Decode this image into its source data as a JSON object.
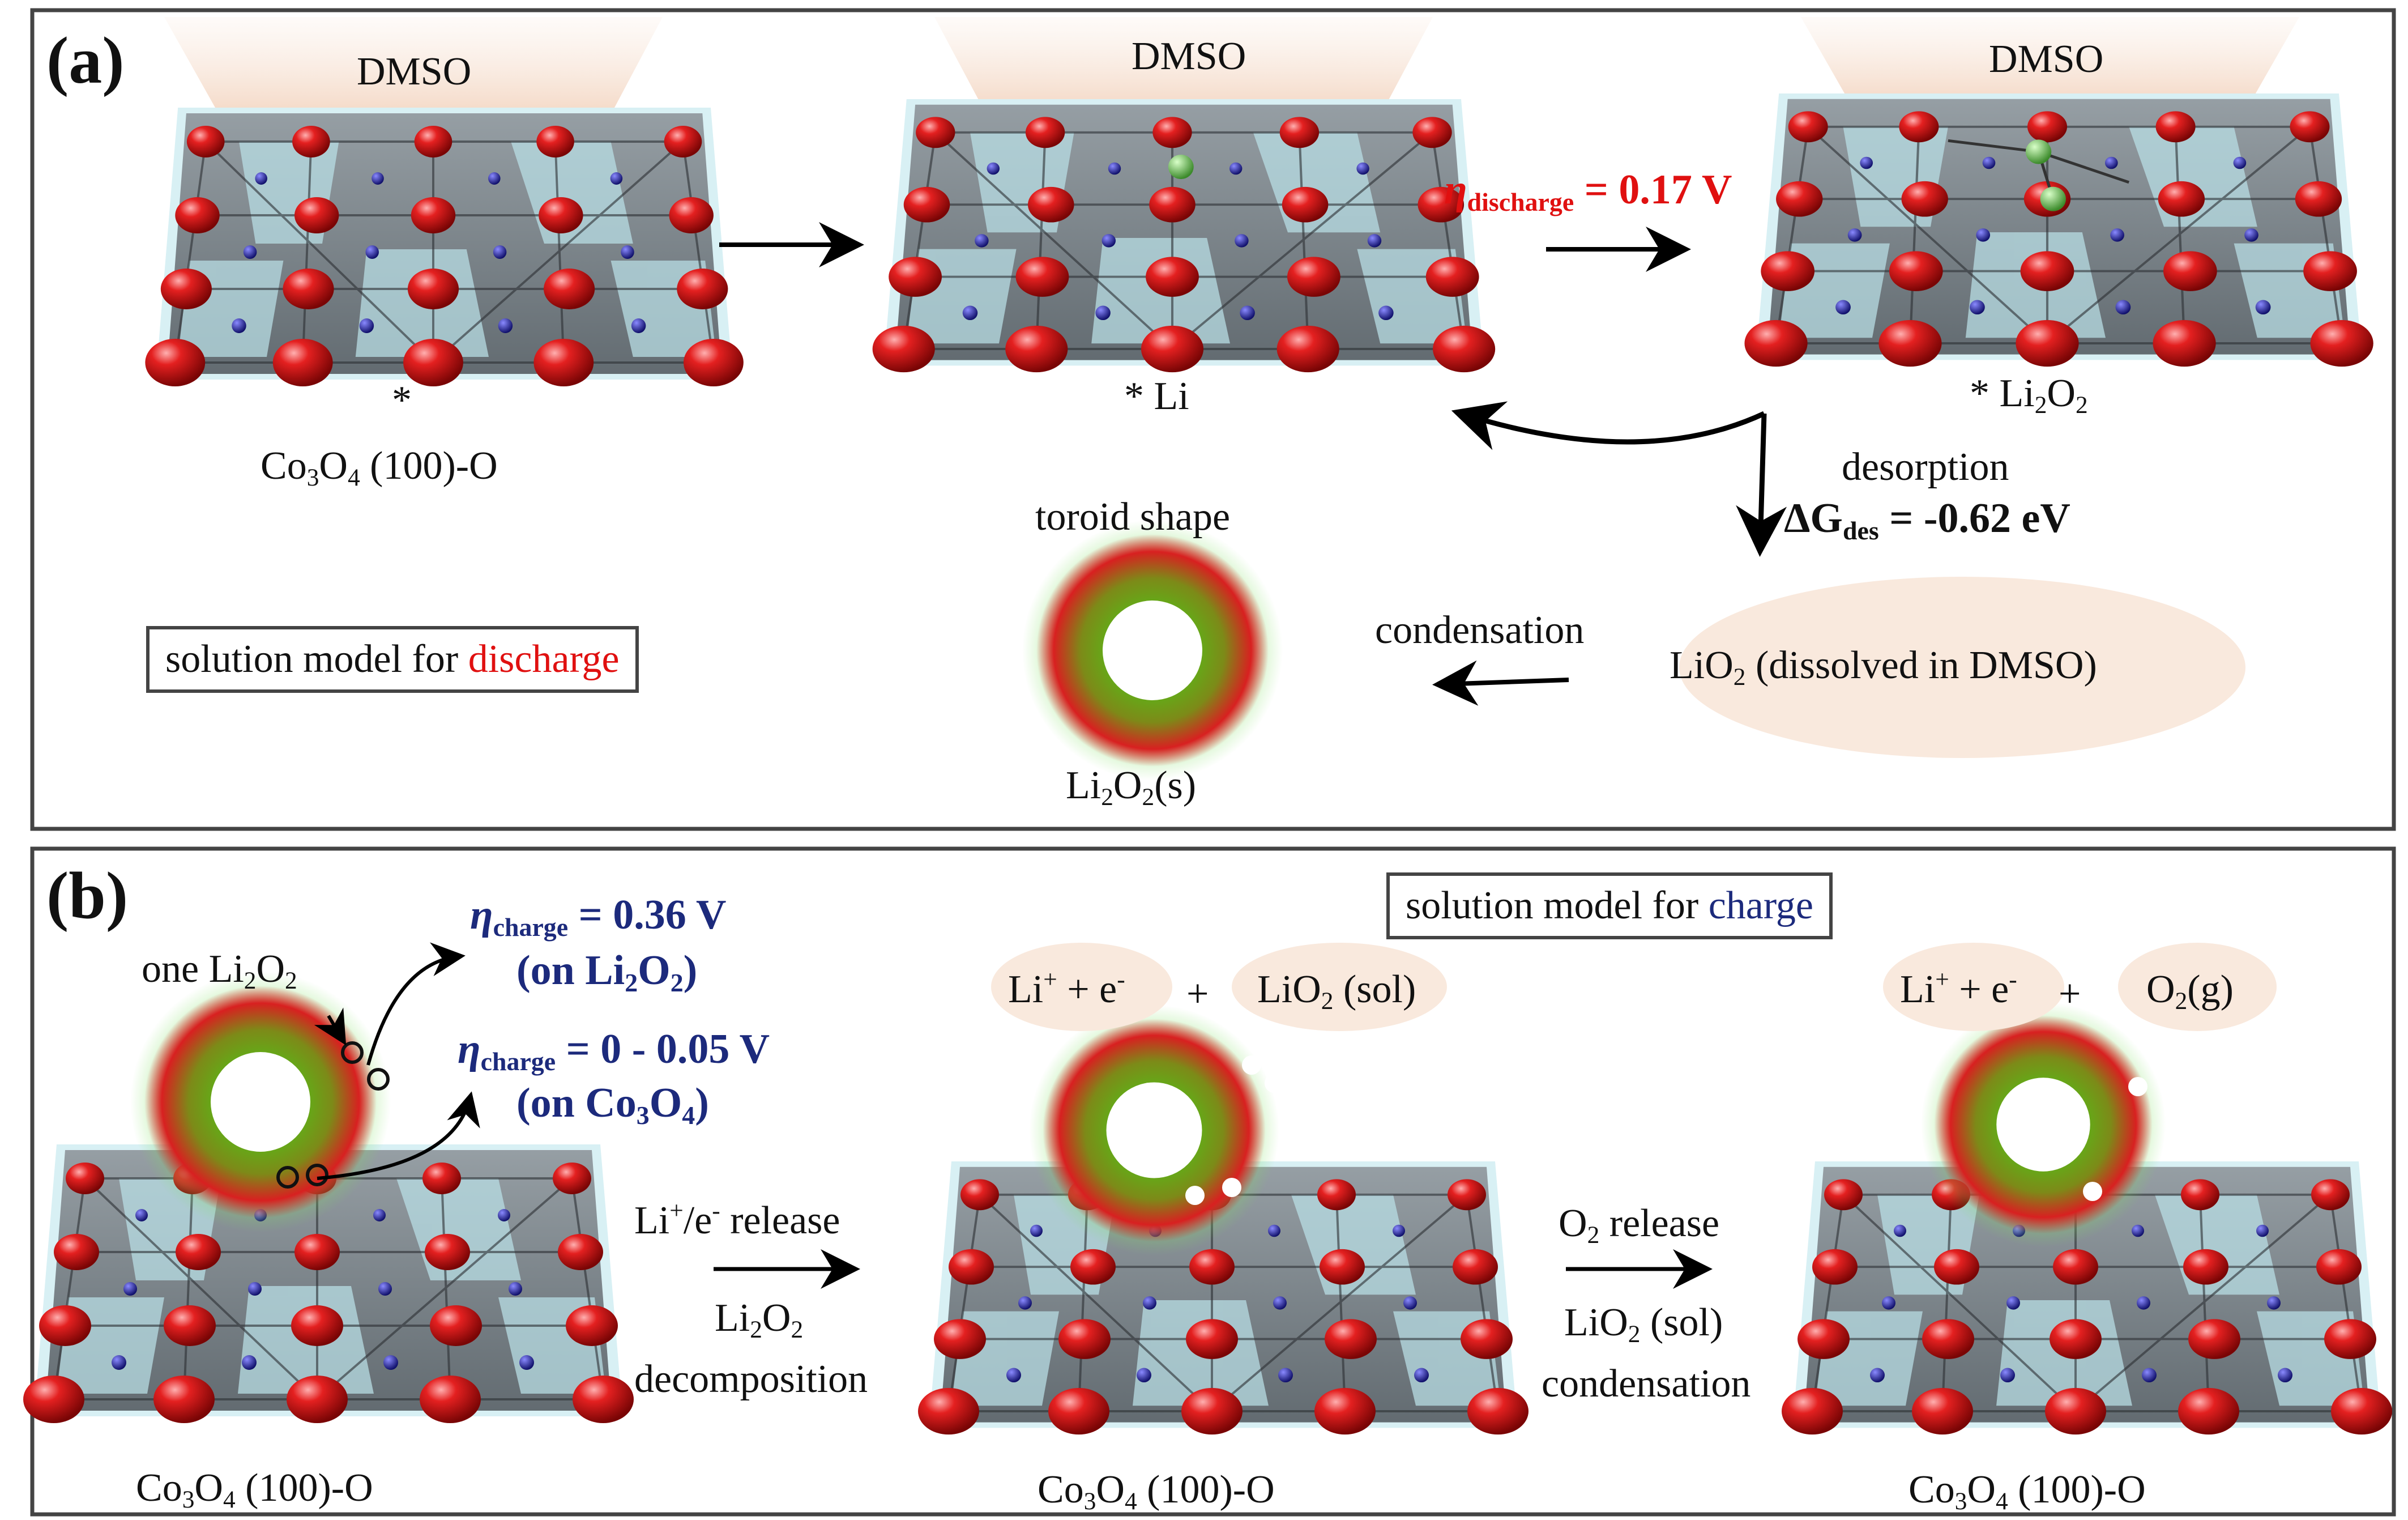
{
  "colors": {
    "oxygen": "#d11a1a",
    "cobalt": "#1a1a9a",
    "lithium": "#6bbf59",
    "polyhedra": "#5b6269",
    "solvent_cap": "#f7e4d6",
    "toroid_outer": "#d42222",
    "toroid_inner": "#5aa818",
    "highlight_red": "#e01010",
    "highlight_navy": "#1c2a7c"
  },
  "panel_a": {
    "label": "(a)",
    "solvent_1": "DMSO",
    "solvent_2": "DMSO",
    "solvent_3": "DMSO",
    "site_1": "*",
    "surface_1": {
      "pre": "Co",
      "s1": "3",
      "mid": "O",
      "s2": "4",
      "post": " (100)-O"
    },
    "site_2": "* Li",
    "site_3": {
      "pre": "* Li",
      "s1": "2",
      "mid": "O",
      "s2": "2"
    },
    "eta_discharge": {
      "symbol": "η",
      "sub": "discharge",
      "value": " = 0.17 V"
    },
    "desorption": "desorption",
    "dG_des": {
      "symbol": "ΔG",
      "sub": "des",
      "value": " = -0.62 eV"
    },
    "toroid_title": "toroid shape",
    "condensation": "condensation",
    "liO2_sol": {
      "pre": "LiO",
      "sub": "2",
      "post": " (dissolved in DMSO)"
    },
    "product": {
      "pre": "Li",
      "s1": "2",
      "mid": "O",
      "s2": "2",
      "post": "(s)"
    },
    "model_box": {
      "pre": "solution model for ",
      "highlight": "discharge"
    }
  },
  "panel_b": {
    "label": "(b)",
    "model_box": {
      "pre": "solution model for ",
      "highlight": "charge"
    },
    "one_li2o2": {
      "pre": "one Li",
      "s1": "2",
      "mid": "O",
      "s2": "2"
    },
    "eta_charge_1": {
      "symbol": "η",
      "sub": "charge",
      "value": " = 0.36 V"
    },
    "on_li2o2": {
      "pre": "(on Li",
      "s1": "2",
      "mid": "O",
      "s2": "2",
      "post": ")"
    },
    "eta_charge_2": {
      "symbol": "η",
      "sub": "charge",
      "value": " = 0 - 0.05 V"
    },
    "on_co3o4": {
      "pre": "(on Co",
      "s1": "3",
      "mid": "O",
      "s2": "4",
      "post": ")"
    },
    "species_1": {
      "li": "Li",
      "plus": "+",
      "e": " + e",
      "minus": "-"
    },
    "plus_1": "+",
    "species_2": {
      "pre": "LiO",
      "sub": "2",
      "post": " (sol)"
    },
    "species_3": {
      "li": "Li",
      "plus": "+",
      "e": " + e",
      "minus": "-"
    },
    "plus_2": "+",
    "species_4": {
      "pre": "O",
      "sub": "2",
      "post": "(g)"
    },
    "step_1_top": {
      "li": "Li",
      "plus": "+",
      "mid": "/e",
      "minus": "-",
      "post": " release"
    },
    "step_1_mid": {
      "pre": "Li",
      "s1": "2",
      "mid": "O",
      "s2": "2"
    },
    "step_1_bot": "decomposition",
    "step_2_top": {
      "pre": "O",
      "sub": "2",
      "post": " release"
    },
    "step_2_mid": {
      "pre": "LiO",
      "sub": "2",
      "post": " (sol)"
    },
    "step_2_bot": "condensation",
    "surface_1": {
      "pre": "Co",
      "s1": "3",
      "mid": "O",
      "s2": "4",
      "post": " (100)-O"
    },
    "surface_2": {
      "pre": "Co",
      "s1": "3",
      "mid": "O",
      "s2": "4",
      "post": " (100)-O"
    },
    "surface_3": {
      "pre": "Co",
      "s1": "3",
      "mid": "O",
      "s2": "4",
      "post": " (100)-O"
    }
  }
}
